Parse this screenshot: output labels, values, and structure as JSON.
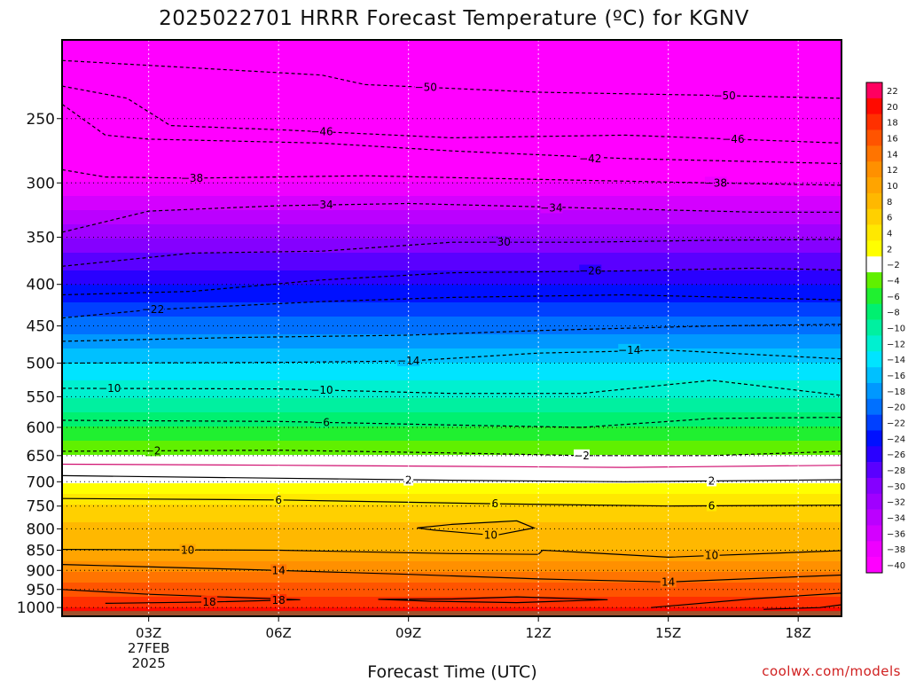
{
  "chart_data": {
    "type": "heatmap",
    "title": "2025022701 HRRR Forecast Temperature (ºC) for KGNV",
    "xlabel": "Forecast Time (UTC)",
    "ylabel": "",
    "credit": "coolwx.com/models",
    "y_ticks": [
      "250",
      "300",
      "350",
      "400",
      "450",
      "500",
      "550",
      "600",
      "650",
      "700",
      "750",
      "800",
      "850",
      "900",
      "950",
      "1000"
    ],
    "y_tick_values": [
      250,
      300,
      350,
      400,
      450,
      500,
      550,
      600,
      650,
      700,
      750,
      800,
      850,
      900,
      950,
      1000
    ],
    "x_ticks": [
      {
        "label": "03Z",
        "date": "27FEB",
        "year": "2025",
        "hour": 3
      },
      {
        "label": "06Z",
        "hour": 6
      },
      {
        "label": "09Z",
        "hour": 9
      },
      {
        "label": "12Z",
        "hour": 12
      },
      {
        "label": "15Z",
        "hour": 15
      },
      {
        "label": "18Z",
        "hour": 18
      }
    ],
    "xlim": [
      1,
      19
    ],
    "ylim": [
      1025,
      200
    ],
    "colorbar_labels": [
      "22",
      "20",
      "18",
      "16",
      "14",
      "12",
      "10",
      "8",
      "6",
      "4",
      "2",
      "-2",
      "-4",
      "-6",
      "-8",
      "-10",
      "-12",
      "-14",
      "-16",
      "-18",
      "-20",
      "-22",
      "-24",
      "-26",
      "-28",
      "-30",
      "-32",
      "-34",
      "-36",
      "-38",
      "-40"
    ],
    "color_levels": [
      {
        "t": -40,
        "c": "#ff00ff"
      },
      {
        "t": -38,
        "c": "#ee00ff"
      },
      {
        "t": -36,
        "c": "#d400ff"
      },
      {
        "t": -34,
        "c": "#bb00ff"
      },
      {
        "t": -32,
        "c": "#a000ff"
      },
      {
        "t": -30,
        "c": "#8500ff"
      },
      {
        "t": -28,
        "c": "#5a00ff"
      },
      {
        "t": -26,
        "c": "#2a00ff"
      },
      {
        "t": -24,
        "c": "#0010ff"
      },
      {
        "t": -22,
        "c": "#0040ff"
      },
      {
        "t": -20,
        "c": "#0070ff"
      },
      {
        "t": -18,
        "c": "#0098ff"
      },
      {
        "t": -16,
        "c": "#00c0ff"
      },
      {
        "t": -14,
        "c": "#00e4ff"
      },
      {
        "t": -12,
        "c": "#00f0d0"
      },
      {
        "t": -10,
        "c": "#00f0a0"
      },
      {
        "t": -8,
        "c": "#00f070"
      },
      {
        "t": -6,
        "c": "#20f030"
      },
      {
        "t": -4,
        "c": "#60f000"
      },
      {
        "t": -2,
        "c": "#ffffff"
      },
      {
        "t": 2,
        "c": "#ffff00"
      },
      {
        "t": 4,
        "c": "#ffe800"
      },
      {
        "t": 6,
        "c": "#ffd000"
      },
      {
        "t": 8,
        "c": "#ffb800"
      },
      {
        "t": 10,
        "c": "#ffa400"
      },
      {
        "t": 12,
        "c": "#ff9000"
      },
      {
        "t": 14,
        "c": "#ff7400"
      },
      {
        "t": 16,
        "c": "#ff5400"
      },
      {
        "t": 18,
        "c": "#ff3000"
      },
      {
        "t": 20,
        "c": "#ff0a00"
      },
      {
        "t": 22,
        "c": "#ff0060"
      }
    ],
    "ground_color": "#a0522d",
    "contours": [
      {
        "label": "-50",
        "dashed": true,
        "points": [
          [
            1,
            212
          ],
          [
            7,
            221
          ],
          [
            8,
            227
          ],
          [
            12,
            232
          ],
          [
            16,
            234
          ],
          [
            19,
            236
          ]
        ],
        "labels": [
          [
            9.4,
            -50
          ],
          [
            16.3,
            -50
          ]
        ]
      },
      {
        "label": "-46",
        "dashed": true,
        "points": [
          [
            1,
            228
          ],
          [
            2.5,
            236
          ],
          [
            3.5,
            255
          ],
          [
            6,
            258
          ],
          [
            10,
            264
          ],
          [
            14,
            262
          ],
          [
            19,
            268
          ]
        ],
        "labels": [
          [
            7,
            -46
          ],
          [
            16.5,
            -46
          ]
        ]
      },
      {
        "label": "-42",
        "dashed": true,
        "points": [
          [
            1,
            240
          ],
          [
            2,
            262
          ],
          [
            3,
            265
          ],
          [
            7,
            268
          ],
          [
            10,
            274
          ],
          [
            14,
            280
          ],
          [
            19,
            284
          ]
        ],
        "labels": [
          [
            13.2,
            -42
          ]
        ]
      },
      {
        "label": "-38",
        "dashed": true,
        "points": [
          [
            1,
            289
          ],
          [
            2,
            295
          ],
          [
            4,
            296
          ],
          [
            8,
            294
          ],
          [
            12,
            297
          ],
          [
            16,
            300
          ],
          [
            19,
            302
          ]
        ],
        "labels": [
          [
            4,
            -38
          ],
          [
            16.1,
            -38
          ]
        ]
      },
      {
        "label": "-34",
        "dashed": true,
        "points": [
          [
            1,
            345
          ],
          [
            3,
            325
          ],
          [
            6,
            320
          ],
          [
            9,
            318
          ],
          [
            13,
            322
          ],
          [
            17,
            326
          ],
          [
            19,
            326
          ]
        ],
        "labels": [
          [
            7,
            -34
          ],
          [
            12.3,
            -34
          ]
        ]
      },
      {
        "label": "-30",
        "dashed": true,
        "points": [
          [
            1,
            380
          ],
          [
            4,
            366
          ],
          [
            7,
            364
          ],
          [
            10,
            355
          ],
          [
            13,
            355
          ],
          [
            16,
            353
          ],
          [
            19,
            352
          ]
        ],
        "labels": [
          [
            11.1,
            -30
          ]
        ]
      },
      {
        "label": "-26",
        "dashed": true,
        "points": [
          [
            1,
            412
          ],
          [
            4,
            408
          ],
          [
            7,
            395
          ],
          [
            10,
            387
          ],
          [
            14,
            385
          ],
          [
            17,
            382
          ],
          [
            19,
            384
          ]
        ],
        "labels": [
          [
            13.2,
            -26
          ]
        ]
      },
      {
        "label": "-22",
        "dashed": true,
        "points": [
          [
            1,
            440
          ],
          [
            3,
            430
          ],
          [
            7,
            420
          ],
          [
            10,
            415
          ],
          [
            14,
            412
          ],
          [
            19,
            418
          ]
        ],
        "labels": [
          [
            3.1,
            -22
          ]
        ]
      },
      {
        "label": "-18",
        "dashed": true,
        "points": [
          [
            1,
            470
          ],
          [
            5,
            465
          ],
          [
            9,
            462
          ],
          [
            12,
            456
          ],
          [
            16,
            450
          ],
          [
            19,
            448
          ]
        ],
        "labels": []
      },
      {
        "label": "-14",
        "dashed": true,
        "points": [
          [
            1,
            500
          ],
          [
            6,
            499
          ],
          [
            9,
            497
          ],
          [
            12,
            486
          ],
          [
            15,
            482
          ],
          [
            19,
            494
          ]
        ],
        "labels": [
          [
            9,
            -14
          ],
          [
            14.1,
            -14
          ]
        ]
      },
      {
        "label": "-10",
        "dashed": true,
        "points": [
          [
            1,
            537
          ],
          [
            6,
            538
          ],
          [
            10,
            545
          ],
          [
            13,
            545
          ],
          [
            16,
            525
          ],
          [
            19,
            548
          ]
        ],
        "labels": [
          [
            2.1,
            -10
          ],
          [
            7,
            -10
          ]
        ]
      },
      {
        "label": "-6",
        "dashed": true,
        "points": [
          [
            1,
            588
          ],
          [
            6,
            590
          ],
          [
            10,
            596
          ],
          [
            13,
            600
          ],
          [
            16,
            585
          ],
          [
            19,
            583
          ]
        ],
        "labels": [
          [
            7,
            -6
          ]
        ]
      },
      {
        "label": "-2",
        "dashed": true,
        "points": [
          [
            1,
            642
          ],
          [
            6,
            640
          ],
          [
            10,
            645
          ],
          [
            13,
            650
          ],
          [
            16,
            650
          ],
          [
            19,
            642
          ]
        ],
        "labels": [
          [
            3.1,
            -2
          ],
          [
            13,
            -2
          ]
        ]
      },
      {
        "label": "0",
        "dashed": false,
        "color": "#d01070",
        "points": [
          [
            1,
            666
          ],
          [
            6,
            668
          ],
          [
            10,
            670
          ],
          [
            14,
            672
          ],
          [
            19,
            668
          ]
        ],
        "labels": []
      },
      {
        "label": "2",
        "dashed": false,
        "points": [
          [
            1,
            688
          ],
          [
            6,
            693
          ],
          [
            10,
            697
          ],
          [
            14,
            700
          ],
          [
            19,
            696
          ]
        ],
        "labels": [
          [
            9,
            2
          ],
          [
            16,
            2
          ]
        ]
      },
      {
        "label": "6",
        "dashed": false,
        "points": [
          [
            1,
            734
          ],
          [
            6,
            737
          ],
          [
            11,
            745
          ],
          [
            15,
            750
          ],
          [
            19,
            748
          ]
        ],
        "labels": [
          [
            6,
            6
          ],
          [
            11,
            6
          ],
          [
            16,
            6
          ]
        ]
      },
      {
        "label": "10",
        "dashed": false,
        "points": [
          [
            1,
            848
          ],
          [
            6,
            850
          ],
          [
            10,
            858
          ],
          [
            12,
            860
          ],
          [
            12.1,
            850
          ],
          [
            15,
            867
          ],
          [
            19,
            851
          ]
        ],
        "labels": [
          [
            3.9,
            10
          ],
          [
            16,
            10
          ]
        ]
      },
      {
        "label": "10b",
        "dashed": false,
        "points": [
          [
            9.2,
            798
          ],
          [
            10,
            790
          ],
          [
            11.5,
            782
          ],
          [
            11.9,
            798
          ],
          [
            11,
            815
          ],
          [
            9.6,
            803
          ],
          [
            9.2,
            798
          ]
        ],
        "labels": [
          [
            10.9,
            10
          ]
        ]
      },
      {
        "label": "14",
        "dashed": false,
        "points": [
          [
            1,
            885
          ],
          [
            5,
            897
          ],
          [
            9,
            910
          ],
          [
            12,
            922
          ],
          [
            15,
            930
          ],
          [
            19,
            912
          ]
        ],
        "labels": [
          [
            6,
            14
          ],
          [
            15,
            14
          ]
        ]
      },
      {
        "label": "18",
        "dashed": false,
        "points": [
          [
            1,
            950
          ],
          [
            3,
            963
          ],
          [
            6.5,
            978
          ],
          [
            4.5,
            984
          ],
          [
            2,
            988
          ]
        ],
        "labels": [
          [
            4.4,
            18
          ],
          [
            6,
            18
          ]
        ]
      },
      {
        "label": "18b",
        "dashed": false,
        "points": [
          [
            8.3,
            977
          ],
          [
            10,
            976
          ],
          [
            11.5,
            970
          ],
          [
            13.6,
            978
          ],
          [
            11.5,
            986
          ],
          [
            9.5,
            982
          ],
          [
            8.3,
            977
          ]
        ],
        "labels": []
      },
      {
        "label": "18c",
        "dashed": false,
        "points": [
          [
            14.6,
            1000
          ],
          [
            17,
            975
          ],
          [
            19,
            960
          ]
        ],
        "labels": []
      },
      {
        "label": "18d",
        "dashed": false,
        "points": [
          [
            17.2,
            1005
          ],
          [
            18.5,
            1000
          ],
          [
            19,
            992
          ]
        ],
        "labels": []
      }
    ]
  }
}
